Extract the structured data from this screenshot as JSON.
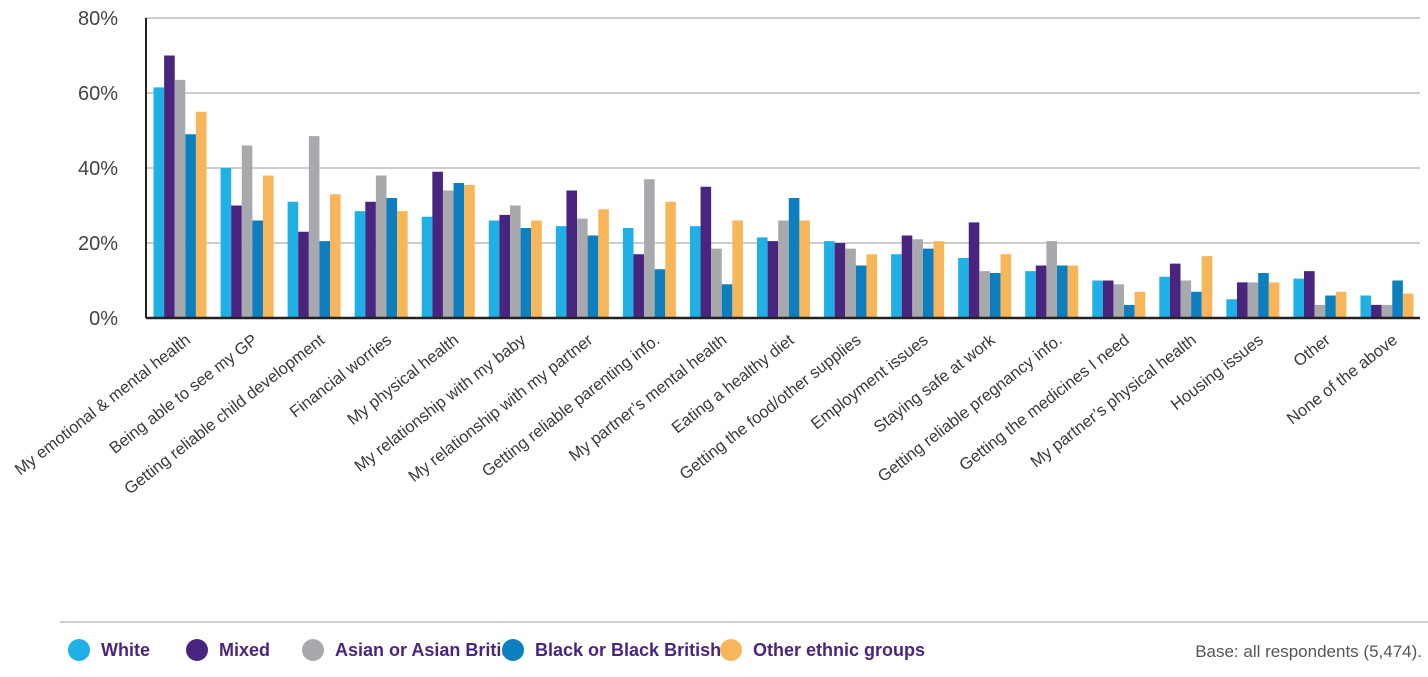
{
  "chart_data": {
    "type": "bar",
    "ylim": [
      0,
      80
    ],
    "yticks": [
      "0%",
      "20%",
      "40%",
      "60%",
      "80%"
    ],
    "ytick_values": [
      0,
      20,
      40,
      60,
      80
    ],
    "grid": true,
    "legend_position": "bottom",
    "categories": [
      "My emotional & mental health",
      "Being able to see my GP",
      "Getting reliable child development",
      "Financial worries",
      "My physical health",
      "My relationship with my baby",
      "My relationship with my partner",
      "Getting reliable parenting info.",
      "My partner’s mental health",
      "Eating a healthy diet",
      "Getting the food/other supplies",
      "Employment issues",
      "Staying safe at work",
      "Getting reliable pregnancy info.",
      "Getting the medicines I need",
      "My partner’s physical health",
      "Housing issues",
      "Other",
      "None of the above"
    ],
    "series": [
      {
        "name": "White",
        "color": "#1fb0e6",
        "values": [
          61.5,
          40,
          31,
          28.5,
          27,
          26,
          24.5,
          24,
          24.5,
          21.5,
          20.5,
          17,
          16,
          12.5,
          10,
          11,
          5,
          10.5,
          6
        ]
      },
      {
        "name": "Mixed",
        "color": "#4a2580",
        "values": [
          70,
          30,
          23,
          31,
          39,
          27.5,
          34,
          17,
          35,
          20.5,
          20,
          22,
          25.5,
          14,
          10,
          14.5,
          9.5,
          12.5,
          3.5
        ]
      },
      {
        "name": "Asian or Asian British",
        "color": "#a7a9ac",
        "values": [
          63.5,
          46,
          48.5,
          38,
          34,
          30,
          26.5,
          37,
          18.5,
          26,
          18.5,
          21,
          12.5,
          20.5,
          9,
          10,
          9.5,
          3.5,
          3.5
        ]
      },
      {
        "name": "Black or Black British",
        "color": "#0d7ebe",
        "values": [
          49,
          26,
          20.5,
          32,
          36,
          24,
          22,
          13,
          9,
          32,
          14,
          18.5,
          12,
          14,
          3.5,
          7,
          12,
          6,
          10
        ]
      },
      {
        "name": "Other ethnic groups",
        "color": "#f7b65a",
        "values": [
          55,
          38,
          33,
          28.5,
          35.5,
          26,
          29,
          31,
          26,
          26,
          17,
          20.5,
          17,
          14,
          7,
          16.5,
          9.5,
          7,
          6.5
        ]
      }
    ]
  },
  "footer": {
    "base_note": "Base: all respondents (5,474)."
  }
}
